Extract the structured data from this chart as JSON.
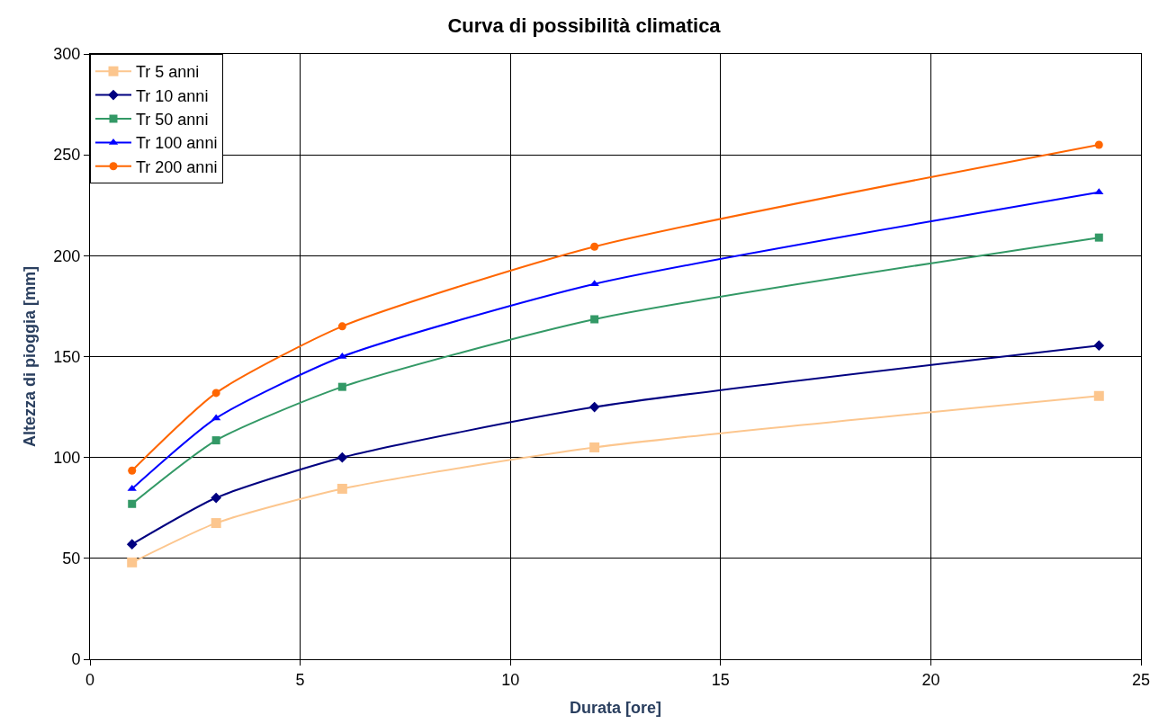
{
  "chart_data": {
    "type": "line",
    "title": "Curva di possibilità climatica",
    "xlabel": "Durata [ore]",
    "ylabel": "Altezza di pioggia [mm]",
    "x": [
      1,
      3,
      6,
      12,
      24
    ],
    "series": [
      {
        "name": "Tr 5 anni",
        "color": "#fcc68e",
        "marker": "square",
        "values": [
          48,
          67.5,
          84.5,
          105,
          130.5
        ]
      },
      {
        "name": "Tr 10 anni",
        "color": "#000080",
        "marker": "diamond",
        "values": [
          57,
          80,
          100,
          125,
          155.5
        ]
      },
      {
        "name": "Tr 50 anni",
        "color": "#339966",
        "marker": "square",
        "values": [
          77,
          108.5,
          135,
          168.5,
          209
        ]
      },
      {
        "name": "Tr 100 anni",
        "color": "#0000ff",
        "marker": "triangle",
        "values": [
          84.5,
          119.5,
          150,
          186,
          231.5
        ]
      },
      {
        "name": "Tr 200 anni",
        "color": "#ff6600",
        "marker": "circle",
        "values": [
          93.5,
          132,
          165,
          204.5,
          255
        ]
      }
    ],
    "xlim": [
      0,
      25
    ],
    "xticks": [
      0,
      5,
      10,
      15,
      20,
      25
    ],
    "ylim": [
      0,
      300
    ],
    "yticks": [
      0,
      50,
      100,
      150,
      200,
      250,
      300
    ],
    "grid": true,
    "legend": "top left"
  }
}
